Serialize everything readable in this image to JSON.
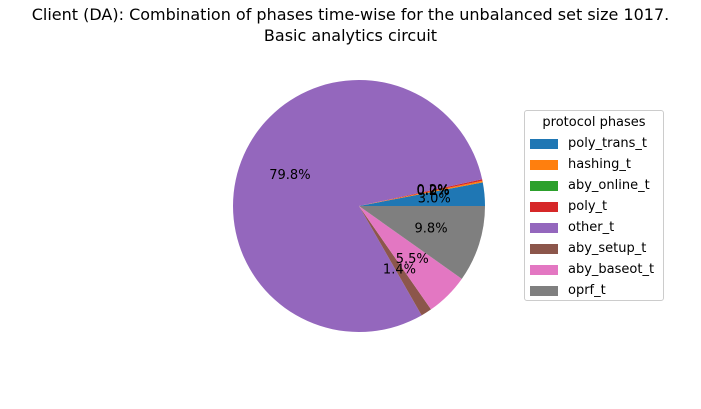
{
  "chart_data": {
    "type": "pie",
    "title": "Client (DA): Combination of phases time-wise for the unbalanced set size 1017.",
    "subtitle": "Basic analytics circuit",
    "legend_title": "protocol phases",
    "legend_position": "right",
    "slices": [
      {
        "name": "poly_trans_t",
        "value": 3.0,
        "label": "3.0%",
        "color": "#1f77b4"
      },
      {
        "name": "hashing_t",
        "value": 0.2,
        "label": "0.2%",
        "color": "#ff7f0e"
      },
      {
        "name": "aby_online_t",
        "value": 0.0,
        "label": "0.0%",
        "color": "#2ca02c"
      },
      {
        "name": "poly_t",
        "value": 0.2,
        "label": "0.2%",
        "color": "#d62728"
      },
      {
        "name": "other_t",
        "value": 79.8,
        "label": "79.8%",
        "color": "#9467bd"
      },
      {
        "name": "aby_setup_t",
        "value": 1.4,
        "label": "1.4%",
        "color": "#8c564b"
      },
      {
        "name": "aby_baseot_t",
        "value": 5.5,
        "label": "5.5%",
        "color": "#e377c2"
      },
      {
        "name": "oprf_t",
        "value": 9.8,
        "label": "9.8%",
        "color": "#7f7f7f"
      }
    ]
  }
}
